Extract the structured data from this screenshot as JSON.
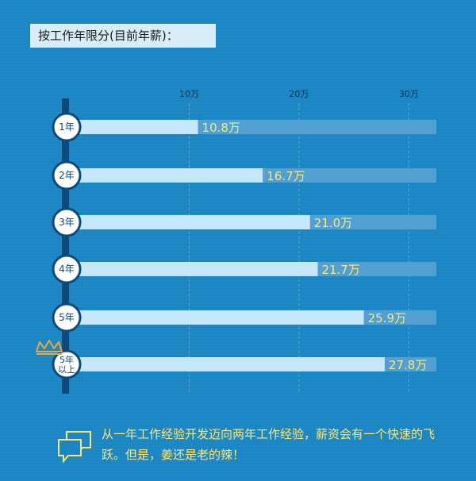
{
  "header": {
    "title": "按工作年限分(目前年薪)："
  },
  "chart_data": {
    "type": "bar",
    "orientation": "horizontal",
    "categories": [
      "1年",
      "2年",
      "3年",
      "4年",
      "5年",
      "5年\n以上"
    ],
    "values": [
      10.8,
      16.7,
      21.0,
      21.7,
      25.9,
      27.8
    ],
    "value_labels": [
      "10.8万",
      "16.7万",
      "21.0万",
      "21.7万",
      "25.9万",
      "27.8万"
    ],
    "x_ticks": [
      10,
      20,
      30
    ],
    "x_tick_labels": [
      "10万",
      "20万",
      "30万"
    ],
    "xlim": [
      0,
      32.5
    ],
    "grid": true,
    "colors": {
      "bar": "#c4e8fa",
      "track": "#5aa5d3",
      "label": "#fce77a",
      "axis": "#0b4a7a",
      "badge_text": "#0b4a7a",
      "crown": "#f0a23b"
    }
  },
  "footer": {
    "note": "从一年工作经验开发迈向两年工作经验，薪资会有一个快速的飞跃。但是，姜还是老的辣！"
  },
  "icons": {
    "crown": "crown-icon",
    "speech": "speech-bubble-icon"
  }
}
